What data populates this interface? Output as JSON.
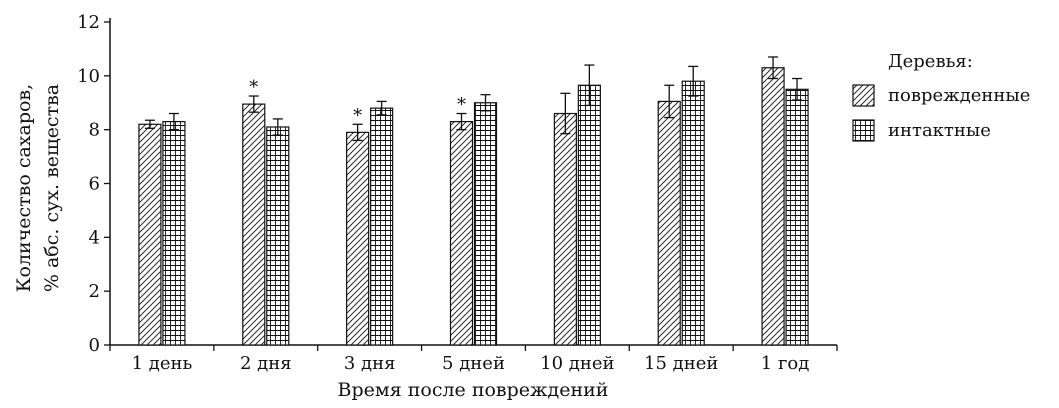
{
  "chart_data": {
    "type": "bar",
    "xlabel": "Время после повреждений",
    "ylabel_line1": "Количество сахаров,",
    "ylabel_line2": "% абс. сух. вещества",
    "ylim": [
      0,
      12
    ],
    "yticks": [
      0,
      2,
      4,
      6,
      8,
      10,
      12
    ],
    "categories": [
      "1 день",
      "2 дня",
      "3 дня",
      "5 дней",
      "10 дней",
      "15 дней",
      "1 год"
    ],
    "series": [
      {
        "name": "поврежденные",
        "pattern": "hatch",
        "values": [
          8.2,
          8.95,
          7.9,
          8.3,
          8.6,
          9.05,
          10.3
        ],
        "errors": [
          0.15,
          0.3,
          0.3,
          0.3,
          0.75,
          0.6,
          0.4
        ]
      },
      {
        "name": "интактные",
        "pattern": "grid",
        "values": [
          8.3,
          8.1,
          8.8,
          9.0,
          9.65,
          9.8,
          9.5
        ],
        "errors": [
          0.3,
          0.3,
          0.25,
          0.3,
          0.75,
          0.55,
          0.4
        ]
      }
    ],
    "significance_marks": [
      {
        "category": "2 дня",
        "series": "поврежденные",
        "mark": "*"
      },
      {
        "category": "3 дня",
        "series": "поврежденные",
        "mark": "*"
      },
      {
        "category": "5 дней",
        "series": "поврежденные",
        "mark": "*"
      }
    ],
    "legend_title": "Деревья:",
    "legend_position": "right",
    "grid": false
  },
  "colors": {
    "ink": "#111111",
    "background": "#ffffff"
  }
}
